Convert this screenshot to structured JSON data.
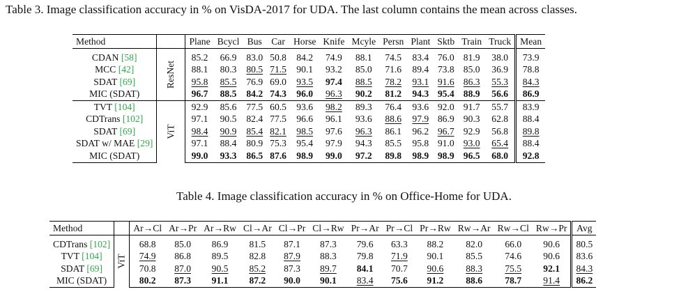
{
  "table3": {
    "caption": "Table 3. Image classification accuracy in % on VisDA-2017 for UDA. The last column contains the mean across classes.",
    "method_header": "Method",
    "columns": [
      "Plane",
      "Bcycl",
      "Bus",
      "Car",
      "Horse",
      "Knife",
      "Mcyle",
      "Persn",
      "Plant",
      "Sktb",
      "Train",
      "Truck",
      "Mean"
    ],
    "groups": [
      {
        "backbone": "ResNet",
        "rows": [
          {
            "name": "CDAN ",
            "ref": "[58]",
            "cells": [
              {
                "v": "85.2"
              },
              {
                "v": "66.9"
              },
              {
                "v": "83.0"
              },
              {
                "v": "50.8"
              },
              {
                "v": "84.2"
              },
              {
                "v": "74.9"
              },
              {
                "v": "88.1"
              },
              {
                "v": "74.5"
              },
              {
                "v": "83.4"
              },
              {
                "v": "76.0"
              },
              {
                "v": "81.9"
              },
              {
                "v": "38.0"
              },
              {
                "v": "73.9"
              }
            ]
          },
          {
            "name": "MCC ",
            "ref": "[42]",
            "cells": [
              {
                "v": "88.1"
              },
              {
                "v": "80.3"
              },
              {
                "v": "80.5",
                "s": "u"
              },
              {
                "v": "71.5",
                "s": "u"
              },
              {
                "v": "90.1"
              },
              {
                "v": "93.2"
              },
              {
                "v": "85.0"
              },
              {
                "v": "71.6"
              },
              {
                "v": "89.4"
              },
              {
                "v": "73.8"
              },
              {
                "v": "85.0"
              },
              {
                "v": "36.9"
              },
              {
                "v": "78.8"
              }
            ]
          },
          {
            "name": "SDAT ",
            "ref": "[69]",
            "cells": [
              {
                "v": "95.8",
                "s": "u"
              },
              {
                "v": "85.5",
                "s": "u"
              },
              {
                "v": "76.9"
              },
              {
                "v": "69.0"
              },
              {
                "v": "93.5",
                "s": "u"
              },
              {
                "v": "97.4",
                "s": "b"
              },
              {
                "v": "88.5",
                "s": "u"
              },
              {
                "v": "78.2",
                "s": "u"
              },
              {
                "v": "93.1",
                "s": "u"
              },
              {
                "v": "91.6",
                "s": "u"
              },
              {
                "v": "86.3",
                "s": "u"
              },
              {
                "v": "55.3",
                "s": "u"
              },
              {
                "v": "84.3",
                "s": "u"
              }
            ]
          },
          {
            "name": "MIC (SDAT)",
            "ref": "",
            "cells": [
              {
                "v": "96.7",
                "s": "b"
              },
              {
                "v": "88.5",
                "s": "b"
              },
              {
                "v": "84.2",
                "s": "b"
              },
              {
                "v": "74.3",
                "s": "b"
              },
              {
                "v": "96.0",
                "s": "b"
              },
              {
                "v": "96.3",
                "s": "u"
              },
              {
                "v": "90.2",
                "s": "b"
              },
              {
                "v": "81.2",
                "s": "b"
              },
              {
                "v": "94.3",
                "s": "b"
              },
              {
                "v": "95.4",
                "s": "b"
              },
              {
                "v": "88.9",
                "s": "b"
              },
              {
                "v": "56.6",
                "s": "b"
              },
              {
                "v": "86.9",
                "s": "b"
              }
            ]
          }
        ]
      },
      {
        "backbone": "ViT",
        "rows": [
          {
            "name": "TVT ",
            "ref": "[104]",
            "cells": [
              {
                "v": "92.9"
              },
              {
                "v": "85.6"
              },
              {
                "v": "77.5"
              },
              {
                "v": "60.5"
              },
              {
                "v": "93.6"
              },
              {
                "v": "98.2",
                "s": "u"
              },
              {
                "v": "89.3"
              },
              {
                "v": "76.4"
              },
              {
                "v": "93.6"
              },
              {
                "v": "92.0"
              },
              {
                "v": "91.7"
              },
              {
                "v": "55.7"
              },
              {
                "v": "83.9"
              }
            ]
          },
          {
            "name": "CDTrans ",
            "ref": "[102]",
            "cells": [
              {
                "v": "97.1"
              },
              {
                "v": "90.5"
              },
              {
                "v": "82.4"
              },
              {
                "v": "77.5"
              },
              {
                "v": "96.6"
              },
              {
                "v": "96.1"
              },
              {
                "v": "93.6"
              },
              {
                "v": "88.6",
                "s": "u"
              },
              {
                "v": "97.9",
                "s": "u"
              },
              {
                "v": "86.9"
              },
              {
                "v": "90.3"
              },
              {
                "v": "62.8"
              },
              {
                "v": "88.4"
              }
            ]
          },
          {
            "name": "SDAT ",
            "ref": "[69]",
            "cells": [
              {
                "v": "98.4",
                "s": "u"
              },
              {
                "v": "90.9",
                "s": "u"
              },
              {
                "v": "85.4",
                "s": "u"
              },
              {
                "v": "82.1",
                "s": "u"
              },
              {
                "v": "98.5",
                "s": "u"
              },
              {
                "v": "97.6"
              },
              {
                "v": "96.3",
                "s": "u"
              },
              {
                "v": "86.1"
              },
              {
                "v": "96.2"
              },
              {
                "v": "96.7",
                "s": "u"
              },
              {
                "v": "92.9"
              },
              {
                "v": "56.8"
              },
              {
                "v": "89.8",
                "s": "u"
              }
            ]
          },
          {
            "name": "SDAT w/ MAE ",
            "ref": "[29]",
            "cells": [
              {
                "v": "97.1"
              },
              {
                "v": "88.4"
              },
              {
                "v": "80.9"
              },
              {
                "v": "75.3"
              },
              {
                "v": "95.4"
              },
              {
                "v": "97.9"
              },
              {
                "v": "94.3"
              },
              {
                "v": "85.5"
              },
              {
                "v": "95.8"
              },
              {
                "v": "91.0"
              },
              {
                "v": "93.0",
                "s": "u"
              },
              {
                "v": "65.4",
                "s": "u"
              },
              {
                "v": "88.4"
              }
            ]
          },
          {
            "name": "MIC (SDAT)",
            "ref": "",
            "cells": [
              {
                "v": "99.0",
                "s": "b"
              },
              {
                "v": "93.3",
                "s": "b"
              },
              {
                "v": "86.5",
                "s": "b"
              },
              {
                "v": "87.6",
                "s": "b"
              },
              {
                "v": "98.9",
                "s": "b"
              },
              {
                "v": "99.0",
                "s": "b"
              },
              {
                "v": "97.2",
                "s": "b"
              },
              {
                "v": "89.8",
                "s": "b"
              },
              {
                "v": "98.9",
                "s": "b"
              },
              {
                "v": "98.9",
                "s": "b"
              },
              {
                "v": "96.5",
                "s": "b"
              },
              {
                "v": "68.0",
                "s": "b"
              },
              {
                "v": "92.8",
                "s": "b"
              }
            ]
          }
        ]
      }
    ]
  },
  "table4": {
    "caption": "Table 4. Image classification accuracy in % on Office-Home for UDA.",
    "method_header": "Method",
    "columns": [
      "Ar→Cl",
      "Ar→Pr",
      "Ar→Rw",
      "Cl→Ar",
      "Cl→Pr",
      "Cl→Rw",
      "Pr→Ar",
      "Pr→Cl",
      "Pr→Rw",
      "Rw→Ar",
      "Rw→Cl",
      "Rw→Pr",
      "Avg"
    ],
    "groups": [
      {
        "backbone": "ViT",
        "rows": [
          {
            "name": "CDTrans ",
            "ref": "[102]",
            "cells": [
              {
                "v": "68.8"
              },
              {
                "v": "85.0"
              },
              {
                "v": "86.9"
              },
              {
                "v": "81.5"
              },
              {
                "v": "87.1"
              },
              {
                "v": "87.3"
              },
              {
                "v": "79.6"
              },
              {
                "v": "63.3"
              },
              {
                "v": "88.2"
              },
              {
                "v": "82.0"
              },
              {
                "v": "66.0"
              },
              {
                "v": "90.6"
              },
              {
                "v": "80.5"
              }
            ]
          },
          {
            "name": "TVT ",
            "ref": "[104]",
            "cells": [
              {
                "v": "74.9",
                "s": "u"
              },
              {
                "v": "86.8"
              },
              {
                "v": "89.5"
              },
              {
                "v": "82.8"
              },
              {
                "v": "87.9",
                "s": "u"
              },
              {
                "v": "88.3"
              },
              {
                "v": "79.8"
              },
              {
                "v": "71.9",
                "s": "u"
              },
              {
                "v": "90.1"
              },
              {
                "v": "85.5"
              },
              {
                "v": "74.6"
              },
              {
                "v": "90.6"
              },
              {
                "v": "83.6"
              }
            ]
          },
          {
            "name": "SDAT ",
            "ref": "[69]",
            "cells": [
              {
                "v": "70.8"
              },
              {
                "v": "87.0",
                "s": "u"
              },
              {
                "v": "90.5",
                "s": "u"
              },
              {
                "v": "85.2",
                "s": "u"
              },
              {
                "v": "87.3"
              },
              {
                "v": "89.7",
                "s": "u"
              },
              {
                "v": "84.1",
                "s": "b"
              },
              {
                "v": "70.7"
              },
              {
                "v": "90.6",
                "s": "u"
              },
              {
                "v": "88.3",
                "s": "u"
              },
              {
                "v": "75.5",
                "s": "u"
              },
              {
                "v": "92.1",
                "s": "b"
              },
              {
                "v": "84.3",
                "s": "u"
              }
            ]
          },
          {
            "name": "MIC (SDAT)",
            "ref": "",
            "cells": [
              {
                "v": "80.2",
                "s": "b"
              },
              {
                "v": "87.3",
                "s": "b"
              },
              {
                "v": "91.1",
                "s": "b"
              },
              {
                "v": "87.2",
                "s": "b"
              },
              {
                "v": "90.0",
                "s": "b"
              },
              {
                "v": "90.1",
                "s": "b"
              },
              {
                "v": "83.4",
                "s": "u"
              },
              {
                "v": "75.6",
                "s": "b"
              },
              {
                "v": "91.2",
                "s": "b"
              },
              {
                "v": "88.6",
                "s": "b"
              },
              {
                "v": "78.7",
                "s": "b"
              },
              {
                "v": "91.4",
                "s": "u"
              },
              {
                "v": "86.2",
                "s": "b"
              }
            ]
          }
        ]
      }
    ]
  }
}
